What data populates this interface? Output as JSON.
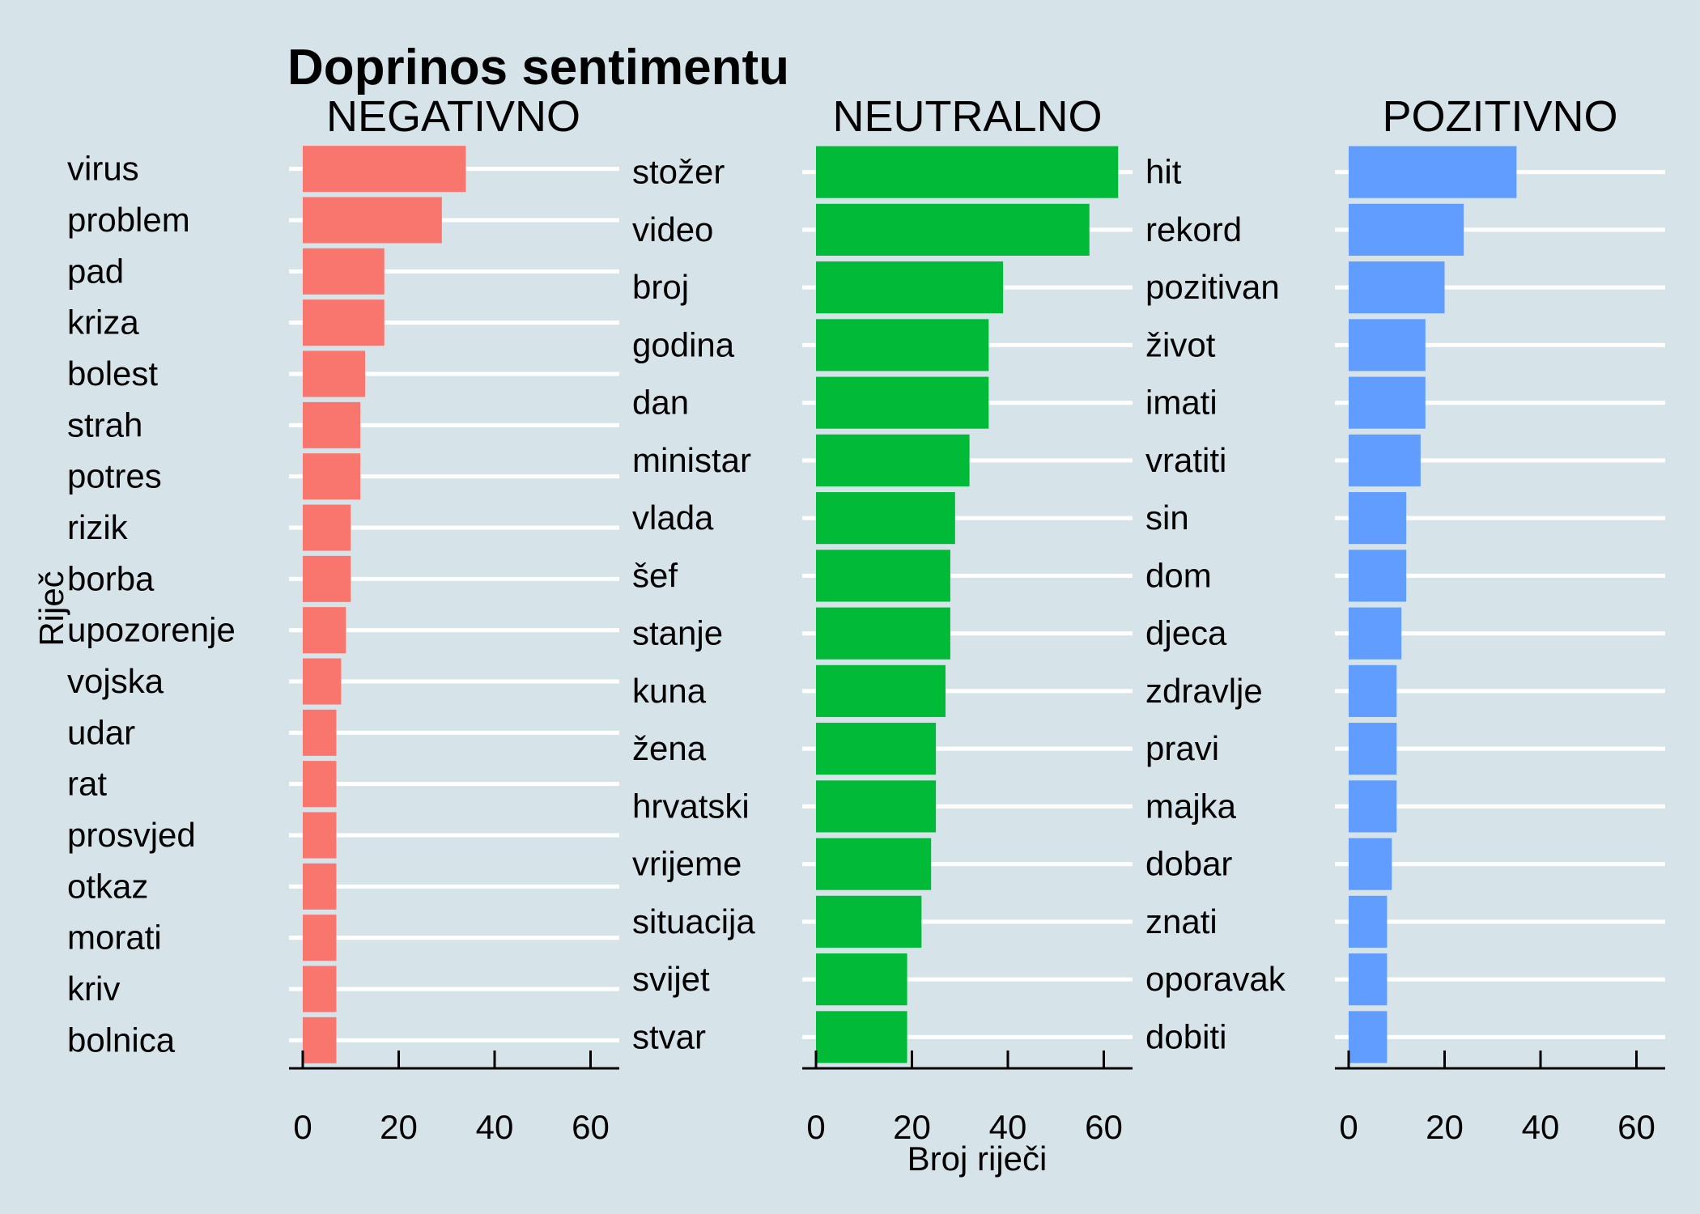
{
  "chart_data": {
    "type": "bar",
    "orientation": "horizontal",
    "title": "Doprinos sentimentu",
    "xlabel": "Broj riječi",
    "ylabel": "Riječ",
    "xlim": [
      0,
      65
    ],
    "x_ticks": [
      0,
      20,
      40,
      60
    ],
    "grid": "horizontal-white",
    "legend": "none",
    "panels": [
      {
        "name": "NEGATIVNO",
        "color": "#F8766D",
        "categories": [
          "virus",
          "problem",
          "pad",
          "kriza",
          "bolest",
          "strah",
          "potres",
          "rizik",
          "borba",
          "upozorenje",
          "vojska",
          "udar",
          "rat",
          "prosvjed",
          "otkaz",
          "morati",
          "kriv",
          "bolnica"
        ],
        "values": [
          34,
          29,
          17,
          17,
          13,
          12,
          12,
          10,
          10,
          9,
          8,
          7,
          7,
          7,
          7,
          7,
          7,
          7
        ]
      },
      {
        "name": "NEUTRALNO",
        "color": "#00BA38",
        "categories": [
          "stožer",
          "video",
          "broj",
          "godina",
          "dan",
          "ministar",
          "vlada",
          "šef",
          "stanje",
          "kuna",
          "žena",
          "hrvatski",
          "vrijeme",
          "situacija",
          "svijet",
          "stvar"
        ],
        "values": [
          63,
          57,
          39,
          36,
          36,
          32,
          29,
          28,
          28,
          27,
          25,
          25,
          24,
          22,
          19,
          19
        ]
      },
      {
        "name": "POZITIVNO",
        "color": "#619CFF",
        "categories": [
          "hit",
          "rekord",
          "pozitivan",
          "život",
          "imati",
          "vratiti",
          "sin",
          "dom",
          "djeca",
          "zdravlje",
          "pravi",
          "majka",
          "dobar",
          "znati",
          "oporavak",
          "dobiti"
        ],
        "values": [
          35,
          24,
          20,
          16,
          16,
          15,
          12,
          12,
          11,
          10,
          10,
          10,
          9,
          8,
          8,
          8
        ]
      }
    ]
  }
}
